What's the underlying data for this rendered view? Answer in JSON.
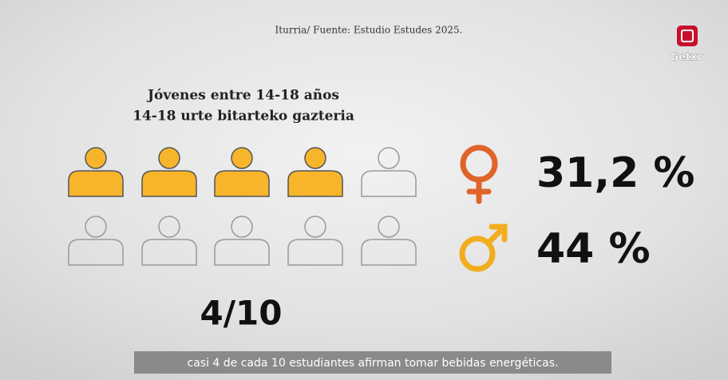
{
  "source": "Iturria/ Fuente: Estudio Estudes 2025.",
  "logo": "Getxo",
  "title": [
    "Jóvenes entre 14-18 años",
    "14-18 urte bitarteko gazteria"
  ],
  "stats": [
    {
      "percent": "31,2 %"
    },
    {
      "percent": "44 %"
    }
  ],
  "fraction": "4/10",
  "caption": "casi 4 de cada 10 estudiantes afirman tomar bebidas energéticas."
}
